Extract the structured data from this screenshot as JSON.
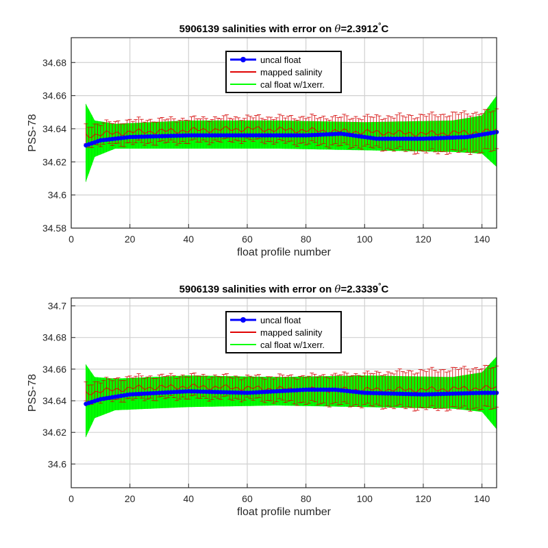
{
  "chart_data": [
    {
      "type": "line",
      "title_prefix": "5906139 salinities with error on ",
      "theta_symbol": "θ",
      "title_value": "=2.3912",
      "title_degree": "°",
      "title_unit": "C",
      "xlabel": "float profile number",
      "ylabel": "PSS-78",
      "xlim": [
        0,
        145
      ],
      "ylim": [
        34.58,
        34.695
      ],
      "xticks": [
        0,
        20,
        40,
        60,
        80,
        100,
        120,
        140
      ],
      "xtick_labels": [
        "0",
        "20",
        "40",
        "60",
        "80",
        "100",
        "120",
        "140"
      ],
      "yticks": [
        34.58,
        34.6,
        34.62,
        34.64,
        34.66,
        34.68
      ],
      "ytick_labels": [
        "34.58",
        "34.6",
        "34.62",
        "34.64",
        "34.66",
        "34.68"
      ],
      "grid": true,
      "legend_position": "top-center",
      "legend": [
        "uncal float",
        "mapped salinity",
        "cal float w/1xerr."
      ],
      "profiles": [
        5,
        145
      ],
      "uncal_float": [
        [
          5,
          34.63
        ],
        [
          10,
          34.633
        ],
        [
          20,
          34.635
        ],
        [
          40,
          34.636
        ],
        [
          60,
          34.636
        ],
        [
          80,
          34.636
        ],
        [
          92,
          34.637
        ],
        [
          100,
          34.635
        ],
        [
          104,
          34.634
        ],
        [
          120,
          34.634
        ],
        [
          135,
          34.635
        ],
        [
          145,
          34.638
        ]
      ],
      "mapped_salinity": [
        [
          5,
          34.636
        ],
        [
          20,
          34.638
        ],
        [
          40,
          34.639
        ],
        [
          60,
          34.64
        ],
        [
          80,
          34.639
        ],
        [
          100,
          34.638
        ],
        [
          120,
          34.637
        ],
        [
          140,
          34.638
        ],
        [
          145,
          34.639
        ]
      ],
      "mapped_error": [
        [
          5,
          0.006
        ],
        [
          20,
          0.007
        ],
        [
          60,
          0.007
        ],
        [
          100,
          0.009
        ],
        [
          120,
          0.011
        ],
        [
          145,
          0.012
        ]
      ],
      "cal_float_upper": [
        [
          5,
          34.655
        ],
        [
          8,
          34.645
        ],
        [
          15,
          34.643
        ],
        [
          40,
          34.645
        ],
        [
          70,
          34.645
        ],
        [
          100,
          34.644
        ],
        [
          130,
          34.645
        ],
        [
          140,
          34.648
        ],
        [
          145,
          34.66
        ]
      ],
      "cal_float_lower": [
        [
          5,
          34.608
        ],
        [
          8,
          34.623
        ],
        [
          15,
          34.628
        ],
        [
          40,
          34.628
        ],
        [
          70,
          34.628
        ],
        [
          100,
          34.627
        ],
        [
          130,
          34.626
        ],
        [
          140,
          34.625
        ],
        [
          145,
          34.617
        ]
      ],
      "colors": {
        "uncal": "#0000ff",
        "mapped": "#e00000",
        "cal": "#00ff00"
      }
    },
    {
      "type": "line",
      "title_prefix": "5906139 salinities with error on ",
      "theta_symbol": "θ",
      "title_value": "=2.3339",
      "title_degree": "°",
      "title_unit": "C",
      "xlabel": "float profile number",
      "ylabel": "PSS-78",
      "xlim": [
        0,
        145
      ],
      "ylim": [
        34.585,
        34.705
      ],
      "xticks": [
        0,
        20,
        40,
        60,
        80,
        100,
        120,
        140
      ],
      "xtick_labels": [
        "0",
        "20",
        "40",
        "60",
        "80",
        "100",
        "120",
        "140"
      ],
      "yticks": [
        34.6,
        34.62,
        34.64,
        34.66,
        34.68,
        34.7
      ],
      "ytick_labels": [
        "34.6",
        "34.62",
        "34.64",
        "34.66",
        "34.68",
        "34.7"
      ],
      "grid": true,
      "legend_position": "top-center",
      "legend": [
        "uncal float",
        "mapped salinity",
        "cal float w/1xerr."
      ],
      "profiles": [
        5,
        145
      ],
      "uncal_float": [
        [
          5,
          34.638
        ],
        [
          10,
          34.641
        ],
        [
          20,
          34.644
        ],
        [
          40,
          34.646
        ],
        [
          60,
          34.645
        ],
        [
          70,
          34.646
        ],
        [
          80,
          34.647
        ],
        [
          90,
          34.647
        ],
        [
          100,
          34.645
        ],
        [
          120,
          34.644
        ],
        [
          140,
          34.645
        ],
        [
          145,
          34.645
        ]
      ],
      "mapped_salinity": [
        [
          5,
          34.645
        ],
        [
          20,
          34.648
        ],
        [
          40,
          34.649
        ],
        [
          60,
          34.648
        ],
        [
          80,
          34.647
        ],
        [
          100,
          34.647
        ],
        [
          120,
          34.647
        ],
        [
          140,
          34.648
        ],
        [
          145,
          34.648
        ]
      ],
      "mapped_error": [
        [
          5,
          0.006
        ],
        [
          20,
          0.007
        ],
        [
          60,
          0.007
        ],
        [
          100,
          0.01
        ],
        [
          120,
          0.012
        ],
        [
          145,
          0.013
        ]
      ],
      "cal_float_upper": [
        [
          5,
          34.663
        ],
        [
          8,
          34.655
        ],
        [
          15,
          34.654
        ],
        [
          40,
          34.656
        ],
        [
          70,
          34.655
        ],
        [
          100,
          34.656
        ],
        [
          130,
          34.655
        ],
        [
          140,
          34.658
        ],
        [
          145,
          34.668
        ]
      ],
      "cal_float_lower": [
        [
          5,
          34.617
        ],
        [
          8,
          34.629
        ],
        [
          15,
          34.634
        ],
        [
          40,
          34.636
        ],
        [
          70,
          34.637
        ],
        [
          100,
          34.636
        ],
        [
          130,
          34.635
        ],
        [
          140,
          34.633
        ],
        [
          145,
          34.622
        ]
      ],
      "colors": {
        "uncal": "#0000ff",
        "mapped": "#e00000",
        "cal": "#00ff00"
      }
    }
  ]
}
